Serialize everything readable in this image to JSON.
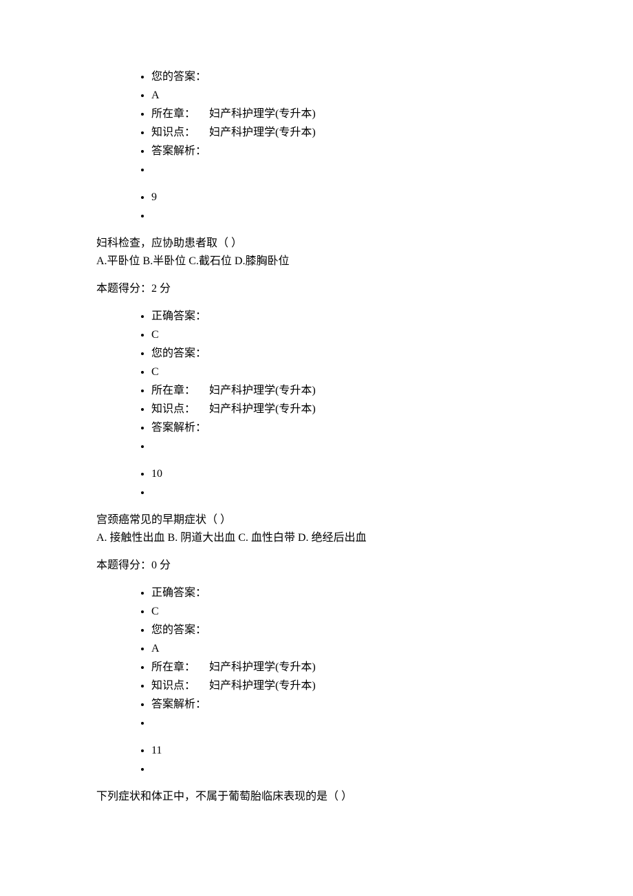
{
  "block1": {
    "your_answer_label": "您的答案：",
    "your_answer": "A",
    "chapter_label": "所在章：",
    "chapter_value": "妇产科护理学(专升本)",
    "knowledge_label": "知识点：",
    "knowledge_value": "妇产科护理学(专升本)",
    "analysis_label": "答案解析：",
    "number": "9"
  },
  "q9": {
    "text": "妇科检查，应协助患者取（ ）",
    "choices": "A.平卧位 B.半卧位 C.截石位 D.膝胸卧位",
    "score": "本题得分：2 分"
  },
  "block2": {
    "correct_answer_label": "正确答案：",
    "correct_answer": "C",
    "your_answer_label": "您的答案：",
    "your_answer": "C",
    "chapter_label": "所在章：",
    "chapter_value": "妇产科护理学(专升本)",
    "knowledge_label": "知识点：",
    "knowledge_value": "妇产科护理学(专升本)",
    "analysis_label": "答案解析：",
    "number": "10"
  },
  "q10": {
    "text": "宫颈癌常见的早期症状（ ）",
    "choices": "A. 接触性出血 B. 阴道大出血 C. 血性白带 D. 绝经后出血",
    "score": "本题得分：0 分"
  },
  "block3": {
    "correct_answer_label": "正确答案：",
    "correct_answer": "C",
    "your_answer_label": "您的答案：",
    "your_answer": "A",
    "chapter_label": "所在章：",
    "chapter_value": "妇产科护理学(专升本)",
    "knowledge_label": "知识点：",
    "knowledge_value": "妇产科护理学(专升本)",
    "analysis_label": "答案解析：",
    "number": "11"
  },
  "q11": {
    "text": "下列症状和体正中，不属于葡萄胎临床表现的是（ ）"
  },
  "spacing": "     "
}
